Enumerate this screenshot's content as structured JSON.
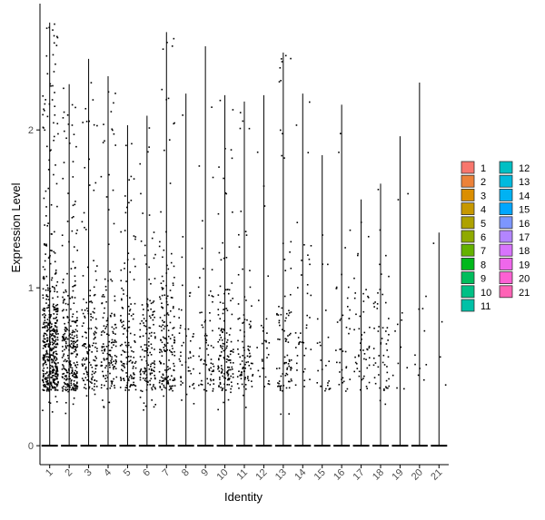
{
  "chart_data": {
    "type": "violin-jitter",
    "xlabel": "Identity",
    "ylabel": "Expression Level",
    "ylim": [
      -0.12,
      2.8
    ],
    "yticks": [
      0,
      1,
      2
    ],
    "categories": [
      "1",
      "2",
      "3",
      "4",
      "5",
      "6",
      "7",
      "8",
      "9",
      "10",
      "11",
      "12",
      "13",
      "14",
      "15",
      "16",
      "17",
      "18",
      "19",
      "20",
      "21"
    ],
    "max_values": [
      2.68,
      2.29,
      2.45,
      2.34,
      2.03,
      2.09,
      2.62,
      2.23,
      2.53,
      2.22,
      2.18,
      2.22,
      2.49,
      2.23,
      1.84,
      2.16,
      1.56,
      1.66,
      1.96,
      2.3,
      1.35
    ],
    "point_density": [
      500,
      300,
      150,
      150,
      140,
      150,
      170,
      50,
      70,
      150,
      90,
      30,
      90,
      40,
      25,
      40,
      50,
      55,
      12,
      10,
      4
    ],
    "legend": {
      "position": "right",
      "entries": [
        {
          "label": "1",
          "color": "#F8766D"
        },
        {
          "label": "2",
          "color": "#EC8239"
        },
        {
          "label": "3",
          "color": "#DB8E00"
        },
        {
          "label": "4",
          "color": "#C79800"
        },
        {
          "label": "5",
          "color": "#AEA200"
        },
        {
          "label": "6",
          "color": "#8FAA00"
        },
        {
          "label": "7",
          "color": "#64B200"
        },
        {
          "label": "8",
          "color": "#00B81B"
        },
        {
          "label": "9",
          "color": "#00BD5C"
        },
        {
          "label": "10",
          "color": "#00C085"
        },
        {
          "label": "11",
          "color": "#00C1A7"
        },
        {
          "label": "12",
          "color": "#00BFC4"
        },
        {
          "label": "13",
          "color": "#00BADE"
        },
        {
          "label": "14",
          "color": "#00B2F3"
        },
        {
          "label": "15",
          "color": "#00A6FF"
        },
        {
          "label": "16",
          "color": "#7C96FF"
        },
        {
          "label": "17",
          "color": "#B385FF"
        },
        {
          "label": "18",
          "color": "#D874FD"
        },
        {
          "label": "19",
          "color": "#EF67EB"
        },
        {
          "label": "20",
          "color": "#FD61D3"
        },
        {
          "label": "21",
          "color": "#FF63B6"
        }
      ]
    }
  }
}
